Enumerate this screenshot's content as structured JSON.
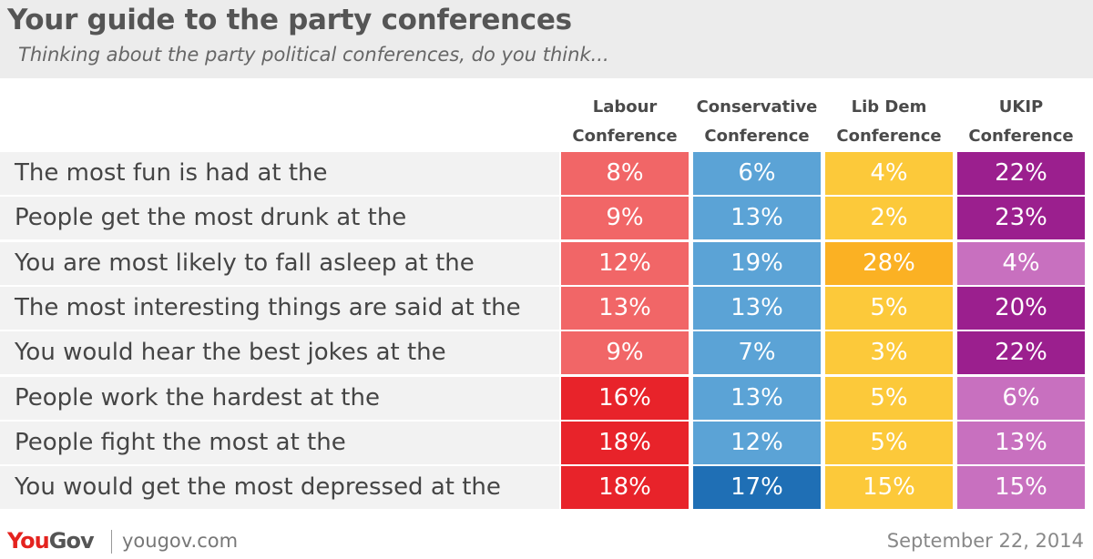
{
  "header": {
    "title": "Your guide to the party conferences",
    "subtitle": "Thinking about the party political conferences, do you think..."
  },
  "chart_data": {
    "type": "table",
    "title": "Your guide to the party conferences",
    "subtitle": "Thinking about the party political conferences, do you think...",
    "columns": [
      {
        "line1": "Labour",
        "line2": "Conference"
      },
      {
        "line1": "Conservative",
        "line2": "Conference"
      },
      {
        "line1": "Lib Dem",
        "line2": "Conference"
      },
      {
        "line1": "UKIP",
        "line2": "Conference"
      }
    ],
    "rows": [
      {
        "label": "The most fun is had at the",
        "values": [
          8,
          6,
          4,
          22
        ],
        "display": [
          "8%",
          "6%",
          "4%",
          "22%"
        ]
      },
      {
        "label": "People get the most drunk at the",
        "values": [
          9,
          13,
          2,
          23
        ],
        "display": [
          "9%",
          "13%",
          "2%",
          "23%"
        ]
      },
      {
        "label": "You are most likely to fall asleep at the",
        "values": [
          12,
          19,
          28,
          4
        ],
        "display": [
          "12%",
          "19%",
          "28%",
          "4%"
        ]
      },
      {
        "label": "The most interesting things are said at the",
        "values": [
          13,
          13,
          5,
          20
        ],
        "display": [
          "13%",
          "13%",
          "5%",
          "20%"
        ]
      },
      {
        "label": "You would hear the best jokes at the",
        "values": [
          9,
          7,
          3,
          22
        ],
        "display": [
          "9%",
          "7%",
          "3%",
          "22%"
        ]
      },
      {
        "label": "People work the hardest at the",
        "values": [
          16,
          13,
          5,
          6
        ],
        "display": [
          "16%",
          "13%",
          "5%",
          "6%"
        ]
      },
      {
        "label": "People fight the most at the",
        "values": [
          18,
          12,
          5,
          13
        ],
        "display": [
          "18%",
          "12%",
          "5%",
          "13%"
        ]
      },
      {
        "label": "You would get the most depressed at the",
        "values": [
          18,
          17,
          15,
          15
        ],
        "display": [
          "18%",
          "17%",
          "15%",
          "15%"
        ]
      }
    ],
    "colors": [
      [
        "#f16667",
        "#5ba3d6",
        "#fcc93a",
        "#9b1f8e"
      ],
      [
        "#f16667",
        "#5ba3d6",
        "#fcc93a",
        "#9b1f8e"
      ],
      [
        "#f16667",
        "#5ba3d6",
        "#fbb123",
        "#c870bf"
      ],
      [
        "#f16667",
        "#5ba3d6",
        "#fcc93a",
        "#9b1f8e"
      ],
      [
        "#f16667",
        "#5ba3d6",
        "#fcc93a",
        "#9b1f8e"
      ],
      [
        "#e8232a",
        "#5ba3d6",
        "#fcc93a",
        "#c870bf"
      ],
      [
        "#e8232a",
        "#5ba3d6",
        "#fcc93a",
        "#c870bf"
      ],
      [
        "#e8232a",
        "#1f6fb5",
        "#fcc93a",
        "#c870bf"
      ]
    ]
  },
  "footer": {
    "logo_you": "You",
    "logo_gov": "Gov",
    "url": "yougov.com",
    "date": "September 22, 2014"
  }
}
